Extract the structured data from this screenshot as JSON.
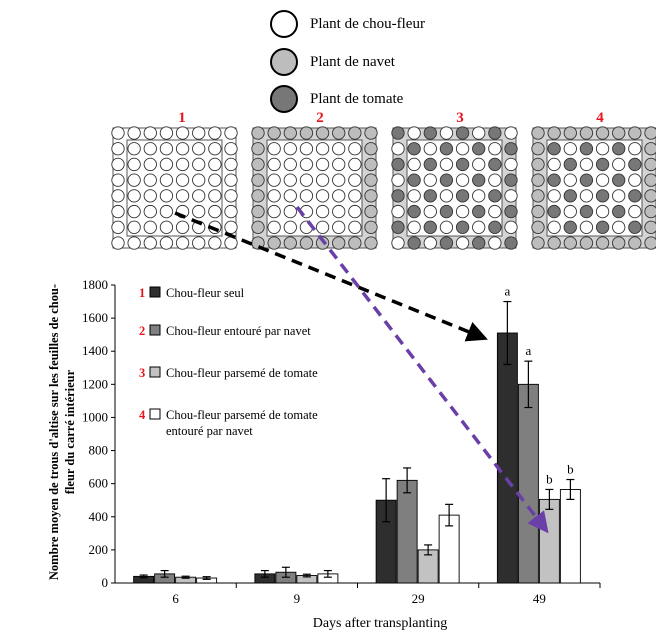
{
  "plant_legend": [
    {
      "label": "Plant de chou-fleur",
      "color": "#ffffff"
    },
    {
      "label": "Plant de navet",
      "color": "#bdbdbd"
    },
    {
      "label": "Plant de tomate",
      "color": "#777777"
    }
  ],
  "layouts": [
    {
      "label": "1",
      "border": "chou",
      "pattern": "none"
    },
    {
      "label": "2",
      "border": "navet",
      "pattern": "none"
    },
    {
      "label": "3",
      "border": "mixed",
      "pattern": "tomato"
    },
    {
      "label": "4",
      "border": "navet",
      "pattern": "tomato"
    }
  ],
  "colors": {
    "red_label": "#e8141c",
    "black_arrow": "#000000",
    "purple_arrow": "#6a3fa8",
    "series": [
      "#2e2e2e",
      "#7f7f7f",
      "#c2c2c2",
      "#ffffff"
    ]
  },
  "chart_data": {
    "type": "bar",
    "categories": [
      "6",
      "9",
      "29",
      "49"
    ],
    "xlabel": "Days after transplanting",
    "ylabel": "Nombre moyen de trous d'altise sur les feuilles de chou-fleur du carré intérieur",
    "ylim": [
      0,
      1800
    ],
    "yticks": [
      "0",
      "200",
      "400",
      "600",
      "800",
      "1000",
      "1200",
      "1400",
      "1600",
      "1800"
    ],
    "series": [
      {
        "name": "Chou-fleur seul",
        "legend_number": "1",
        "values": [
          40,
          55,
          500,
          1510
        ],
        "errors": [
          8,
          20,
          130,
          190
        ],
        "letters": [
          "",
          "",
          "",
          "a"
        ]
      },
      {
        "name": "Chou-fleur entouré par navet",
        "legend_number": "2",
        "values": [
          55,
          65,
          620,
          1200
        ],
        "errors": [
          20,
          30,
          75,
          140
        ],
        "letters": [
          "",
          "",
          "",
          "a"
        ]
      },
      {
        "name": "Chou-fleur parsemé de tomate",
        "legend_number": "3",
        "values": [
          35,
          45,
          200,
          505
        ],
        "errors": [
          6,
          8,
          30,
          60
        ],
        "letters": [
          "",
          "",
          "",
          "b"
        ]
      },
      {
        "name": "Chou-fleur parsemé de tomate entouré par navet",
        "legend_number": "4",
        "values": [
          30,
          55,
          410,
          565
        ],
        "errors": [
          8,
          20,
          65,
          60
        ],
        "letters": [
          "",
          "",
          "",
          "b"
        ]
      }
    ],
    "legend_lines": [
      [
        "Chou-fleur seul"
      ],
      [
        "Chou-fleur entouré par navet"
      ],
      [
        "Chou-fleur parsemé de tomate"
      ],
      [
        "Chou-fleur parsemé de tomate",
        "entouré par navet"
      ]
    ]
  }
}
